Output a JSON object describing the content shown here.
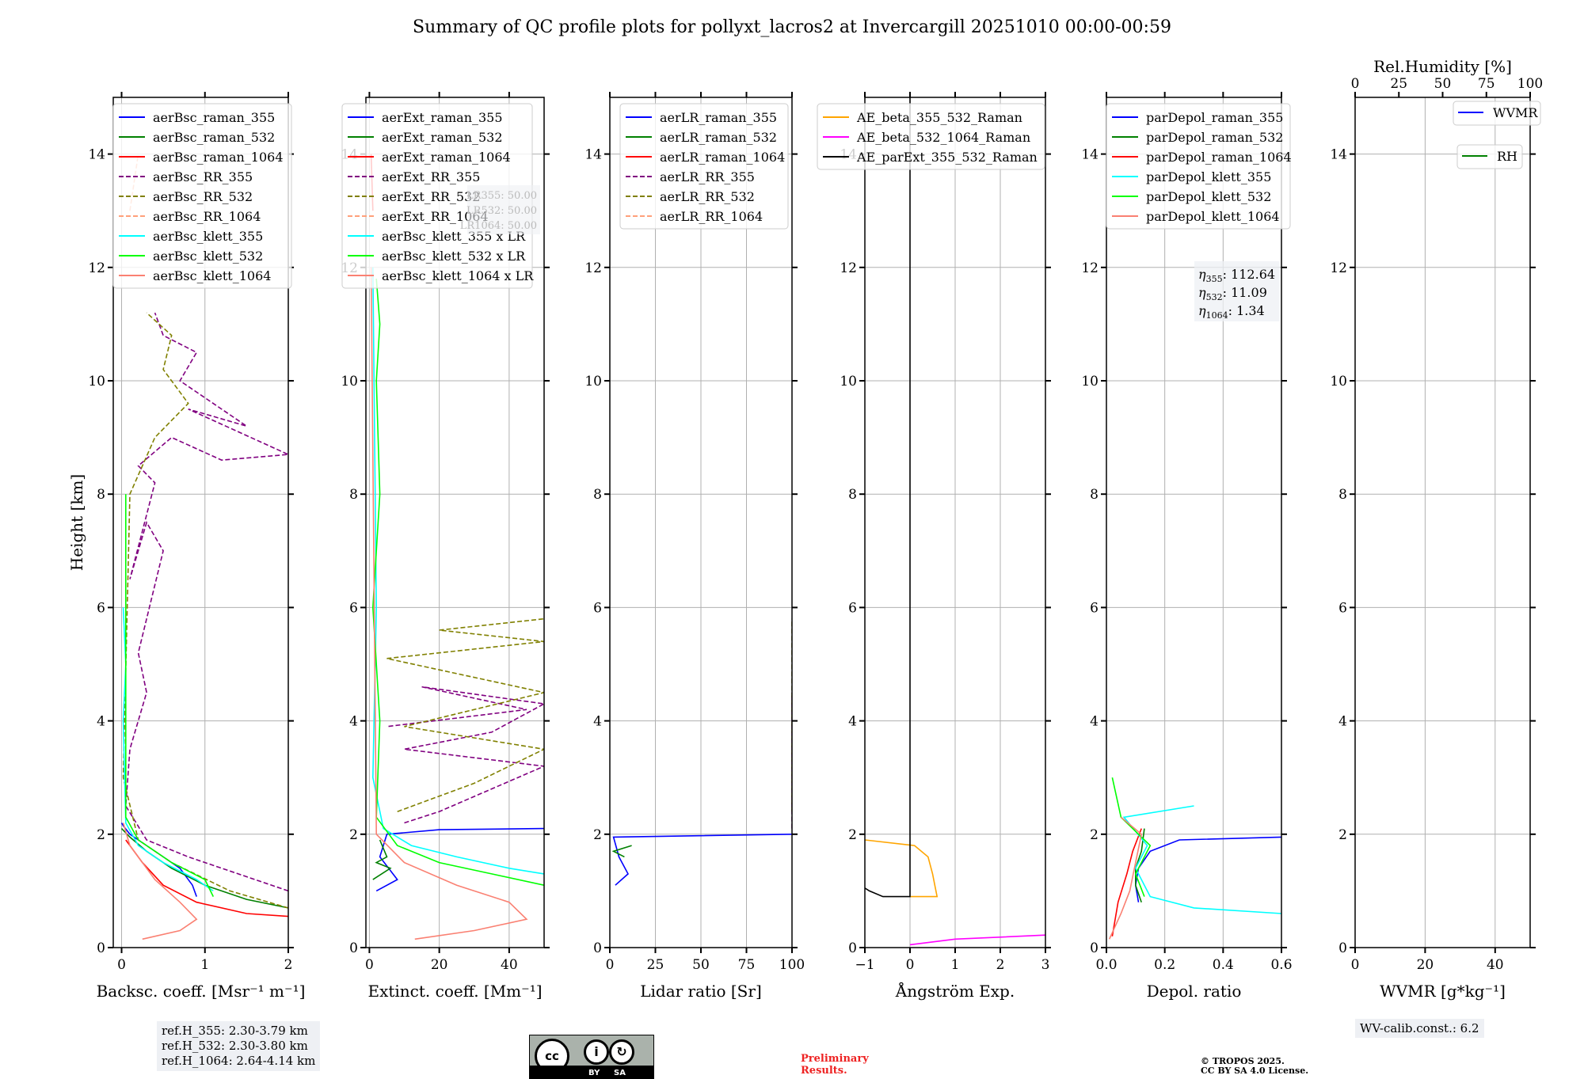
{
  "title": "Summary of QC profile plots for pollyxt_lacros2 at Invercargill 20251010 00:00-00:59",
  "ylabel": "Height [km]",
  "ref_heights": [
    "ref.H_355: 2.30-3.79 km",
    "ref.H_532: 2.30-3.80 km",
    "ref.H_1064: 2.64-4.14 km"
  ],
  "lidar_ratio_box": [
    "LR355: 50.00",
    "LR532: 50.00",
    "LR1064: 50.00"
  ],
  "eta_box": [
    {
      "sym": "η",
      "sub": "355",
      "value": "112.64"
    },
    {
      "sym": "η",
      "sub": "532",
      "value": "11.09"
    },
    {
      "sym": "η",
      "sub": "1064",
      "value": "1.34"
    }
  ],
  "wv_calib": "WV-calib.const.: 6.2",
  "license_badge": {
    "left": "cc",
    "by": "BY",
    "sa": "SA"
  },
  "preliminary": [
    "Preliminary",
    "Results."
  ],
  "copyright": [
    "© TROPOS 2025.",
    "CC BY SA 4.0 License."
  ],
  "colors": {
    "raman_355": "#0000ff",
    "raman_532": "#008000",
    "raman_1064": "#ff0000",
    "rr_355": "#800080",
    "rr_532": "#808000",
    "rr_1064": "#ffa07a",
    "klett_355": "#00ffff",
    "klett_532": "#00ff00",
    "klett_1064": "#fa8072",
    "ae1": "#ffa500",
    "ae2": "#ff00ff",
    "ae3": "#000000",
    "wvmr": "#0000ff",
    "rh": "#008000"
  },
  "chart_data": [
    {
      "type": "line",
      "panel": "backscatter",
      "xlabel": "Backsc. coeff. [Msr⁻¹ m⁻¹]",
      "xlim": [
        -0.1,
        2
      ],
      "ylim": [
        0,
        15
      ],
      "xticks": [
        "0",
        "1",
        "2"
      ],
      "xtick_values": [
        0,
        1,
        2
      ],
      "yticks": [
        "0",
        "2",
        "4",
        "6",
        "8",
        "10",
        "12",
        "14"
      ],
      "grid": true,
      "legend": "top-left",
      "series": [
        {
          "name": "aerBsc_raman_355",
          "color": "raman_355",
          "dash": false,
          "x": [
            0.9,
            0.85,
            0.7,
            0.5,
            0.3,
            0.1,
            0.02,
            0.0
          ],
          "y": [
            0.9,
            1.1,
            1.4,
            1.6,
            1.8,
            2.0,
            2.15,
            2.2
          ]
        },
        {
          "name": "aerBsc_raman_532",
          "color": "raman_532",
          "dash": false,
          "x": [
            2.0,
            1.5,
            1.0,
            0.6,
            0.3,
            0.1,
            0.0
          ],
          "y": [
            0.7,
            0.85,
            1.1,
            1.4,
            1.7,
            1.95,
            2.1
          ]
        },
        {
          "name": "aerBsc_raman_1064",
          "color": "raman_1064",
          "dash": false,
          "x": [
            2.0,
            1.5,
            0.9,
            0.5,
            0.25,
            0.05
          ],
          "y": [
            0.55,
            0.6,
            0.8,
            1.1,
            1.5,
            1.9
          ]
        },
        {
          "name": "aerBsc_RR_355",
          "color": "rr_355",
          "dash": true,
          "x": [
            2.0,
            1.4,
            0.8,
            0.3,
            0.05,
            0.1,
            0.3,
            0.2,
            0.5,
            0.3,
            0.1,
            0.4,
            0.2,
            0.6,
            1.2,
            2.0,
            0.8,
            1.5,
            0.7,
            0.9,
            0.5,
            0.4
          ],
          "y": [
            1.0,
            1.3,
            1.6,
            1.9,
            2.5,
            3.5,
            4.5,
            5.2,
            7.0,
            7.5,
            6.5,
            8.2,
            8.5,
            9.0,
            8.6,
            8.7,
            9.5,
            9.2,
            10.0,
            10.5,
            10.8,
            11.2
          ]
        },
        {
          "name": "aerBsc_RR_532",
          "color": "rr_532",
          "dash": true,
          "x": [
            2.0,
            1.3,
            0.6,
            0.2,
            0.02,
            0.1,
            0.4,
            0.8,
            0.5,
            0.6,
            0.3
          ],
          "y": [
            0.7,
            1.0,
            1.5,
            1.9,
            3.0,
            8.0,
            9.0,
            9.6,
            10.2,
            10.8,
            11.2
          ]
        },
        {
          "name": "aerBsc_RR_1064",
          "color": "rr_1064",
          "dash": true,
          "x": [
            0.1,
            0.2
          ],
          "y": [
            13,
            14
          ]
        },
        {
          "name": "aerBsc_klett_355",
          "color": "klett_355",
          "dash": false,
          "x": [
            1.1,
            0.9,
            0.5,
            0.2,
            0.05,
            0.02,
            0.05,
            0.02
          ],
          "y": [
            1.0,
            1.2,
            1.5,
            1.8,
            2.2,
            4.0,
            5.0,
            6.0
          ]
        },
        {
          "name": "aerBsc_klett_532",
          "color": "klett_532",
          "dash": false,
          "x": [
            1.1,
            1.0,
            0.6,
            0.2,
            0.05,
            0.05
          ],
          "y": [
            0.9,
            1.2,
            1.5,
            1.9,
            2.3,
            8.0
          ]
        },
        {
          "name": "aerBsc_klett_1064",
          "color": "klett_1064",
          "dash": false,
          "x": [
            0.25,
            0.7,
            0.9,
            0.7,
            0.4,
            0.1,
            0.02
          ],
          "y": [
            0.15,
            0.3,
            0.5,
            0.8,
            1.2,
            1.8,
            2.2
          ]
        }
      ],
      "box_text": "ref_heights"
    },
    {
      "type": "line",
      "panel": "extinction",
      "xlabel": "Extinct. coeff. [Mm⁻¹]",
      "xlim": [
        -1,
        50
      ],
      "ylim": [
        0,
        15
      ],
      "xticks": [
        "0",
        "20",
        "40"
      ],
      "xtick_values": [
        0,
        20,
        40
      ],
      "yticks": [
        "0",
        "2",
        "4",
        "6",
        "8",
        "10",
        "12",
        "14"
      ],
      "grid": true,
      "legend": "top-left",
      "series": [
        {
          "name": "aerExt_raman_355",
          "color": "raman_355",
          "dash": false,
          "x": [
            50,
            20,
            5,
            3,
            8,
            2
          ],
          "y": [
            2.1,
            2.08,
            2.0,
            1.6,
            1.2,
            1.0
          ]
        },
        {
          "name": "aerExt_raman_532",
          "color": "raman_532",
          "dash": false,
          "x": [
            3,
            5,
            2,
            6,
            1
          ],
          "y": [
            1.9,
            1.6,
            1.5,
            1.4,
            1.2
          ]
        },
        {
          "name": "aerExt_raman_1064",
          "color": "raman_1064",
          "dash": false,
          "x": [
            0.5,
            1
          ],
          "y": [
            14,
            13
          ]
        },
        {
          "name": "aerExt_RR_355",
          "color": "rr_355",
          "dash": true,
          "x": [
            10,
            20,
            50,
            10,
            35,
            50,
            15,
            45,
            5
          ],
          "y": [
            2.2,
            2.4,
            3.2,
            3.5,
            3.8,
            4.3,
            4.6,
            4.2,
            3.9
          ]
        },
        {
          "name": "aerExt_RR_532",
          "color": "rr_532",
          "dash": true,
          "x": [
            8,
            30,
            50,
            10,
            50,
            5,
            50,
            20,
            50
          ],
          "y": [
            2.4,
            2.9,
            3.5,
            3.9,
            4.5,
            5.1,
            5.4,
            5.6,
            5.8
          ]
        },
        {
          "name": "aerExt_RR_1064",
          "color": "rr_1064",
          "dash": true,
          "x": [
            0
          ],
          "y": [
            0
          ]
        },
        {
          "name": "aerBsc_klett_355 x LR",
          "color": "klett_355",
          "dash": false,
          "x": [
            50,
            40,
            25,
            12,
            4,
            1,
            2,
            1
          ],
          "y": [
            1.3,
            1.4,
            1.6,
            1.8,
            2.1,
            3.0,
            6.0,
            12.0
          ]
        },
        {
          "name": "aerBsc_klett_532 x LR",
          "color": "klett_532",
          "dash": false,
          "x": [
            50,
            35,
            20,
            8,
            2,
            3,
            1,
            3,
            2,
            3,
            2
          ],
          "y": [
            1.1,
            1.3,
            1.5,
            1.8,
            2.3,
            4.0,
            6.0,
            8.0,
            10.0,
            11.0,
            11.8
          ]
        },
        {
          "name": "aerBsc_klett_1064 x LR",
          "color": "klett_1064",
          "dash": false,
          "x": [
            13,
            30,
            45,
            40,
            25,
            10,
            2,
            0.5
          ],
          "y": [
            0.15,
            0.3,
            0.5,
            0.8,
            1.1,
            1.5,
            2.0,
            12.0
          ]
        }
      ],
      "box_text": "lidar_ratio_box"
    },
    {
      "type": "line",
      "panel": "lidar_ratio",
      "xlabel": "Lidar ratio [Sr]",
      "xlim": [
        0,
        100
      ],
      "ylim": [
        0,
        15
      ],
      "xticks": [
        "0",
        "25",
        "50",
        "75",
        "100"
      ],
      "xtick_values": [
        0,
        25,
        50,
        75,
        100
      ],
      "yticks": [
        "0",
        "2",
        "4",
        "6",
        "8",
        "10",
        "12",
        "14"
      ],
      "grid": true,
      "legend": "top-left",
      "series": [
        {
          "name": "aerLR_raman_355",
          "color": "raman_355",
          "dash": false,
          "x": [
            100,
            2,
            5,
            10,
            3
          ],
          "y": [
            2.0,
            1.95,
            1.6,
            1.3,
            1.1
          ]
        },
        {
          "name": "aerLR_raman_532",
          "color": "raman_532",
          "dash": false,
          "x": [
            12,
            2,
            8
          ],
          "y": [
            1.8,
            1.7,
            1.6
          ]
        },
        {
          "name": "aerLR_raman_1064",
          "color": "raman_1064",
          "dash": false,
          "x": [
            0
          ],
          "y": [
            0
          ]
        },
        {
          "name": "aerLR_RR_355",
          "color": "rr_355",
          "dash": true,
          "x": [
            100,
            100,
            100,
            100
          ],
          "y": [
            2.1,
            3.3,
            3.8,
            4.5
          ]
        },
        {
          "name": "aerLR_RR_532",
          "color": "rr_532",
          "dash": true,
          "x": [
            100,
            100,
            100,
            100,
            100,
            100
          ],
          "y": [
            2.4,
            2.9,
            3.5,
            4.0,
            5.2,
            5.8
          ]
        },
        {
          "name": "aerLR_RR_1064",
          "color": "rr_1064",
          "dash": true,
          "x": [
            0
          ],
          "y": [
            0
          ]
        }
      ]
    },
    {
      "type": "line",
      "panel": "angstrom",
      "xlabel": "Ångström Exp.",
      "xlim": [
        -1,
        3
      ],
      "ylim": [
        0,
        15
      ],
      "xticks": [
        "−1",
        "0",
        "1",
        "2",
        "3"
      ],
      "xtick_values": [
        -1,
        0,
        1,
        2,
        3
      ],
      "yticks": [
        "0",
        "2",
        "4",
        "6",
        "8",
        "10",
        "12",
        "14"
      ],
      "grid": true,
      "legend": "top-right",
      "series": [
        {
          "name": "AE_beta_355_532_Raman",
          "color": "ae1",
          "dash": false,
          "x": [
            -1,
            0.1,
            0.4,
            0.5,
            0.55,
            0.6,
            0.0
          ],
          "y": [
            1.9,
            1.8,
            1.6,
            1.3,
            1.1,
            0.9,
            0.9
          ]
        },
        {
          "name": "AE_beta_532_1064_Raman",
          "color": "ae2",
          "dash": false,
          "x": [
            0,
            1.0,
            3.0
          ],
          "y": [
            0.05,
            0.15,
            0.22
          ]
        },
        {
          "name": "AE_parExt_355_532_Raman",
          "color": "ae3",
          "dash": false,
          "x": [
            0,
            0,
            -0.6,
            -0.9,
            -1.0
          ],
          "y": [
            15,
            0.9,
            0.9,
            1.0,
            1.05
          ]
        }
      ]
    },
    {
      "type": "line",
      "panel": "depolarization",
      "xlabel": "Depol. ratio",
      "xlim": [
        0,
        0.6
      ],
      "ylim": [
        0,
        15
      ],
      "xticks": [
        "0.0",
        "0.2",
        "0.4",
        "0.6"
      ],
      "xtick_values": [
        0,
        0.2,
        0.4,
        0.6
      ],
      "yticks": [
        "0",
        "2",
        "4",
        "6",
        "8",
        "10",
        "12",
        "14"
      ],
      "grid": true,
      "legend": "top-left",
      "series": [
        {
          "name": "parDepol_raman_355",
          "color": "raman_355",
          "dash": false,
          "x": [
            0.6,
            0.25,
            0.15,
            0.11,
            0.1,
            0.11
          ],
          "y": [
            1.95,
            1.9,
            1.7,
            1.4,
            1.1,
            0.8
          ]
        },
        {
          "name": "parDepol_raman_532",
          "color": "raman_532",
          "dash": false,
          "x": [
            0.13,
            0.12,
            0.1,
            0.1,
            0.12
          ],
          "y": [
            2.1,
            1.7,
            1.4,
            1.1,
            0.8
          ]
        },
        {
          "name": "parDepol_raman_1064",
          "color": "raman_1064",
          "dash": false,
          "x": [
            0.12,
            0.09,
            0.07,
            0.04,
            0.02
          ],
          "y": [
            2.1,
            1.7,
            1.3,
            0.8,
            0.2
          ]
        },
        {
          "name": "parDepol_klett_355",
          "color": "klett_355",
          "dash": false,
          "x": [
            0.6,
            0.3,
            0.15,
            0.1,
            0.14,
            0.06,
            0.3
          ],
          "y": [
            0.6,
            0.7,
            0.9,
            1.4,
            1.8,
            2.3,
            2.5
          ]
        },
        {
          "name": "parDepol_klett_532",
          "color": "klett_532",
          "dash": false,
          "x": [
            0.13,
            0.1,
            0.15,
            0.05,
            0.02
          ],
          "y": [
            0.9,
            1.3,
            1.8,
            2.3,
            3.0
          ]
        },
        {
          "name": "parDepol_klett_1064",
          "color": "klett_1064",
          "dash": false,
          "x": [
            0.01,
            0.05,
            0.08,
            0.1,
            0.12,
            0.05
          ],
          "y": [
            0.15,
            0.6,
            1.0,
            1.5,
            2.0,
            2.3
          ]
        }
      ],
      "box_text": "eta_box"
    },
    {
      "type": "line",
      "panel": "wvmr",
      "xlabel": "WVMR [g*kg⁻¹]",
      "xlim": [
        0,
        50
      ],
      "ylim": [
        0,
        15
      ],
      "xticks": [
        "0",
        "20",
        "40"
      ],
      "xtick_values": [
        0,
        20,
        40
      ],
      "top_axis_label": "Rel.Humidity [%]",
      "top_xlim": [
        0,
        100
      ],
      "top_xticks": [
        "0",
        "25",
        "50",
        "75",
        "100"
      ],
      "top_xtick_values": [
        0,
        25,
        50,
        75,
        100
      ],
      "yticks": [
        "0",
        "2",
        "4",
        "6",
        "8",
        "10",
        "12",
        "14"
      ],
      "grid": true,
      "legend": "top-right",
      "series": [
        {
          "name": "WVMR",
          "color": "wvmr",
          "dash": false,
          "x": [],
          "y": []
        },
        {
          "name": "RH",
          "color": "rh",
          "dash": false,
          "x": [],
          "y": []
        }
      ]
    }
  ]
}
